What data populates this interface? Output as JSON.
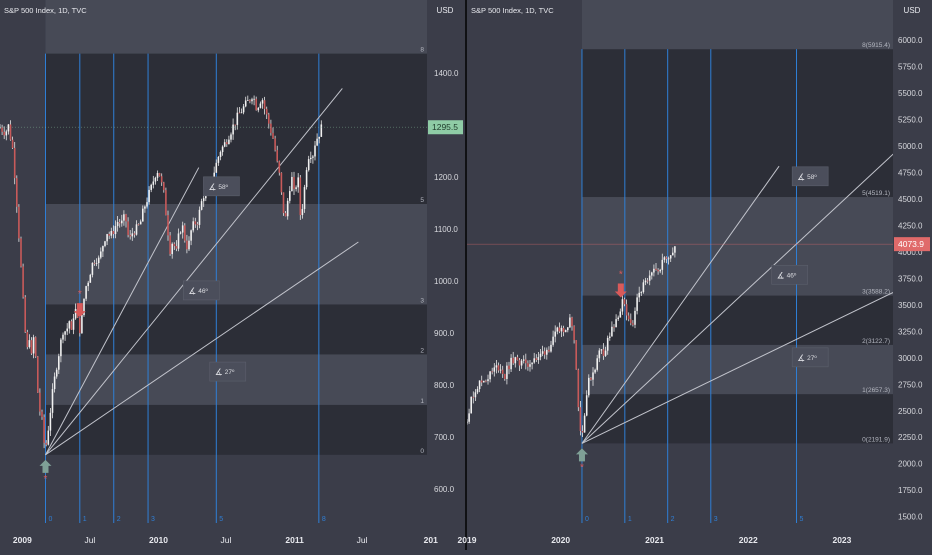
{
  "colors": {
    "background": "#3b3d49",
    "band_dark": "#2c2e37",
    "band_light": "#474a56",
    "time_line": "#2f7fd6",
    "fan_line": "#c2c4cc",
    "candle": "#e6e6e6",
    "price_label_green": "#8fcca6",
    "price_label_red": "#e06a6a",
    "arrow_up": "#7fa096",
    "arrow_down": "#d95a5a",
    "panel_divider": "#101114"
  },
  "chart_data": [
    {
      "type": "candlestick",
      "title": "S&P 500 Index, 1D, TVC",
      "currency": "USD",
      "y_ticks": [
        "600.0",
        "700.0",
        "800.0",
        "900.0",
        "1000.0",
        "1100.0",
        "1200.0",
        "1300.0",
        "1400.0",
        "1500.0"
      ],
      "y_tick_values": [
        600,
        700,
        800,
        900,
        1000,
        1100,
        1200,
        1300,
        1400,
        1500
      ],
      "ylim": [
        535,
        1540
      ],
      "x_ticks": [
        "2009",
        "Jul",
        "2010",
        "Jul",
        "2011",
        "Jul",
        "201"
      ],
      "x_tick_days": [
        0,
        181,
        365,
        546,
        730,
        911,
        1095
      ],
      "xlim_days": [
        -60,
        1085
      ],
      "last_price_label": "1295.5",
      "last_price": 1295.5,
      "origin": {
        "day": 62,
        "price": 666
      },
      "fib_levels": [
        {
          "label": "0",
          "value": 666
        },
        {
          "label": "1",
          "value": 762
        },
        {
          "label": "2",
          "value": 859
        },
        {
          "label": "3",
          "value": 955
        },
        {
          "label": "5",
          "value": 1148
        },
        {
          "label": "8",
          "value": 1437
        }
      ],
      "time_zones": [
        {
          "label": "0",
          "day": 62
        },
        {
          "label": "1",
          "day": 154
        },
        {
          "label": "2",
          "day": 245
        },
        {
          "label": "3",
          "day": 337
        },
        {
          "label": "5",
          "day": 520
        },
        {
          "label": "8",
          "day": 795
        }
      ],
      "fan_lines": [
        {
          "label": "58º",
          "end_day": 473,
          "end_price": 1218
        },
        {
          "label": "46º",
          "end_day": 858,
          "end_price": 1370
        },
        {
          "label": "27º",
          "end_day": 901,
          "end_price": 1075
        }
      ],
      "angle_labels": [
        {
          "text": "58º",
          "day": 515,
          "price": 1181
        },
        {
          "text": "46º",
          "day": 461,
          "price": 981
        },
        {
          "text": "27º",
          "day": 532,
          "price": 825
        }
      ],
      "price_path": [
        [
          -60,
          1295
        ],
        [
          -45,
          1285
        ],
        [
          -38,
          1300
        ],
        [
          -25,
          1250
        ],
        [
          -15,
          1150
        ],
        [
          -5,
          1040
        ],
        [
          5,
          925
        ],
        [
          12,
          860
        ],
        [
          18,
          900
        ],
        [
          25,
          850
        ],
        [
          32,
          905
        ],
        [
          38,
          820
        ],
        [
          44,
          760
        ],
        [
          52,
          735
        ],
        [
          58,
          690
        ],
        [
          62,
          676
        ],
        [
          70,
          720
        ],
        [
          80,
          780
        ],
        [
          90,
          830
        ],
        [
          100,
          870
        ],
        [
          110,
          910
        ],
        [
          118,
          900
        ],
        [
          125,
          930
        ],
        [
          130,
          890
        ],
        [
          138,
          940
        ],
        [
          145,
          945
        ],
        [
          152,
          900
        ],
        [
          160,
          930
        ],
        [
          168,
          985
        ],
        [
          176,
          1000
        ],
        [
          186,
          1030
        ],
        [
          196,
          1045
        ],
        [
          206,
          1040
        ],
        [
          216,
          1070
        ],
        [
          226,
          1095
        ],
        [
          236,
          1085
        ],
        [
          246,
          1100
        ],
        [
          256,
          1115
        ],
        [
          266,
          1110
        ],
        [
          276,
          1125
        ],
        [
          286,
          1075
        ],
        [
          296,
          1095
        ],
        [
          306,
          1100
        ],
        [
          316,
          1110
        ],
        [
          326,
          1140
        ],
        [
          336,
          1160
        ],
        [
          346,
          1180
        ],
        [
          356,
          1205
        ],
        [
          365,
          1215
        ],
        [
          372,
          1190
        ],
        [
          380,
          1165
        ],
        [
          388,
          1110
        ],
        [
          396,
          1060
        ],
        [
          404,
          1080
        ],
        [
          412,
          1050
        ],
        [
          420,
          1090
        ],
        [
          428,
          1110
        ],
        [
          436,
          1080
        ],
        [
          444,
          1060
        ],
        [
          452,
          1095
        ],
        [
          460,
          1110
        ],
        [
          470,
          1115
        ],
        [
          480,
          1150
        ],
        [
          490,
          1175
        ],
        [
          500,
          1180
        ],
        [
          510,
          1200
        ],
        [
          520,
          1225
        ],
        [
          530,
          1250
        ],
        [
          540,
          1260
        ],
        [
          550,
          1275
        ],
        [
          560,
          1290
        ],
        [
          570,
          1305
        ],
        [
          580,
          1320
        ],
        [
          590,
          1330
        ],
        [
          600,
          1340
        ],
        [
          610,
          1350
        ],
        [
          618,
          1360
        ],
        [
          626,
          1335
        ],
        [
          634,
          1340
        ],
        [
          642,
          1355
        ],
        [
          650,
          1330
        ],
        [
          658,
          1310
        ],
        [
          666,
          1290
        ],
        [
          674,
          1270
        ],
        [
          682,
          1230
        ],
        [
          690,
          1200
        ],
        [
          698,
          1140
        ],
        [
          706,
          1120
        ],
        [
          714,
          1170
        ],
        [
          722,
          1200
        ],
        [
          730,
          1160
        ],
        [
          738,
          1210
        ],
        [
          746,
          1120
        ],
        [
          754,
          1160
        ],
        [
          762,
          1220
        ],
        [
          770,
          1250
        ],
        [
          778,
          1240
        ],
        [
          786,
          1270
        ],
        [
          794,
          1280
        ],
        [
          802,
          1295
        ]
      ]
    },
    {
      "type": "candlestick",
      "title": "S&P 500 Index, 1D, TVC",
      "currency": "USD",
      "y_ticks": [
        "1500.0",
        "1750.0",
        "2000.0",
        "2250.0",
        "2500.0",
        "2750.0",
        "3000.0",
        "3250.0",
        "3500.0",
        "3750.0",
        "4000.0",
        "4250.0",
        "4500.0",
        "4750.0",
        "5000.0",
        "5250.0",
        "5500.0",
        "5750.0",
        "6000.0",
        "6250.0"
      ],
      "y_tick_values": [
        1500,
        1750,
        2000,
        2250,
        2500,
        2750,
        3000,
        3250,
        3500,
        3750,
        4000,
        4250,
        4500,
        4750,
        5000,
        5250,
        5500,
        5750,
        6000,
        6250
      ],
      "ylim": [
        1440,
        6380
      ],
      "x_ticks": [
        "2019",
        "2020",
        "2021",
        "2022",
        "2023"
      ],
      "x_tick_days": [
        0,
        365,
        731,
        1096,
        1461
      ],
      "xlim_days": [
        0,
        1660
      ],
      "last_price_label": "4073.9",
      "last_price": 4073.9,
      "origin": {
        "day": 448,
        "price": 2191.9
      },
      "fib_levels": [
        {
          "label": "0(2191.9)",
          "value": 2191.9
        },
        {
          "label": "1(2657.3)",
          "value": 2657.3
        },
        {
          "label": "2(3122.7)",
          "value": 3122.7
        },
        {
          "label": "3(3588.2)",
          "value": 3588.2
        },
        {
          "label": "5(4519.1)",
          "value": 4519.1
        },
        {
          "label": "8(5915.4)",
          "value": 5915.4
        }
      ],
      "time_zones": [
        {
          "label": "0",
          "day": 448
        },
        {
          "label": "1",
          "day": 615
        },
        {
          "label": "2",
          "day": 782
        },
        {
          "label": "3",
          "day": 950
        },
        {
          "label": "5",
          "day": 1284
        },
        {
          "label": "8",
          "day": 1786
        }
      ],
      "fan_lines": [
        {
          "label": "58º",
          "end_day": 1216,
          "end_price": 4810
        },
        {
          "label": "46º",
          "end_day": 1956,
          "end_price": 5590
        },
        {
          "label": "27º",
          "end_day": 2122,
          "end_price": 4160
        }
      ],
      "angle_labels": [
        {
          "text": "58º",
          "day": 1310,
          "price": 4710
        },
        {
          "text": "46º",
          "day": 1230,
          "price": 3780
        },
        {
          "text": "27º",
          "day": 1310,
          "price": 3000
        }
      ],
      "price_path": [
        [
          0,
          2440
        ],
        [
          15,
          2580
        ],
        [
          30,
          2700
        ],
        [
          50,
          2760
        ],
        [
          70,
          2800
        ],
        [
          90,
          2840
        ],
        [
          110,
          2900
        ],
        [
          130,
          2920
        ],
        [
          145,
          2810
        ],
        [
          160,
          2920
        ],
        [
          180,
          2980
        ],
        [
          200,
          2950
        ],
        [
          215,
          3000
        ],
        [
          230,
          2900
        ],
        [
          245,
          2960
        ],
        [
          260,
          3010
        ],
        [
          275,
          2970
        ],
        [
          290,
          3040
        ],
        [
          305,
          3070
        ],
        [
          320,
          3100
        ],
        [
          335,
          3160
        ],
        [
          350,
          3240
        ],
        [
          365,
          3270
        ],
        [
          380,
          3290
        ],
        [
          395,
          3320
        ],
        [
          405,
          3380
        ],
        [
          412,
          3280
        ],
        [
          418,
          3200
        ],
        [
          424,
          2950
        ],
        [
          430,
          2700
        ],
        [
          436,
          2480
        ],
        [
          442,
          2320
        ],
        [
          448,
          2240
        ],
        [
          456,
          2450
        ],
        [
          466,
          2650
        ],
        [
          476,
          2790
        ],
        [
          486,
          2840
        ],
        [
          496,
          2900
        ],
        [
          506,
          2960
        ],
        [
          516,
          3060
        ],
        [
          526,
          3110
        ],
        [
          536,
          3020
        ],
        [
          546,
          3160
        ],
        [
          556,
          3210
        ],
        [
          566,
          3270
        ],
        [
          576,
          3290
        ],
        [
          586,
          3370
        ],
        [
          596,
          3460
        ],
        [
          606,
          3520
        ],
        [
          616,
          3450
        ],
        [
          626,
          3330
        ],
        [
          636,
          3380
        ],
        [
          646,
          3300
        ],
        [
          656,
          3480
        ],
        [
          666,
          3550
        ],
        [
          676,
          3620
        ],
        [
          686,
          3680
        ],
        [
          696,
          3700
        ],
        [
          706,
          3710
        ],
        [
          716,
          3760
        ],
        [
          726,
          3800
        ],
        [
          736,
          3830
        ],
        [
          746,
          3860
        ],
        [
          756,
          3880
        ],
        [
          766,
          3920
        ],
        [
          776,
          3940
        ],
        [
          786,
          3980
        ],
        [
          796,
          4000
        ],
        [
          806,
          4030
        ],
        [
          816,
          4074
        ]
      ]
    }
  ]
}
